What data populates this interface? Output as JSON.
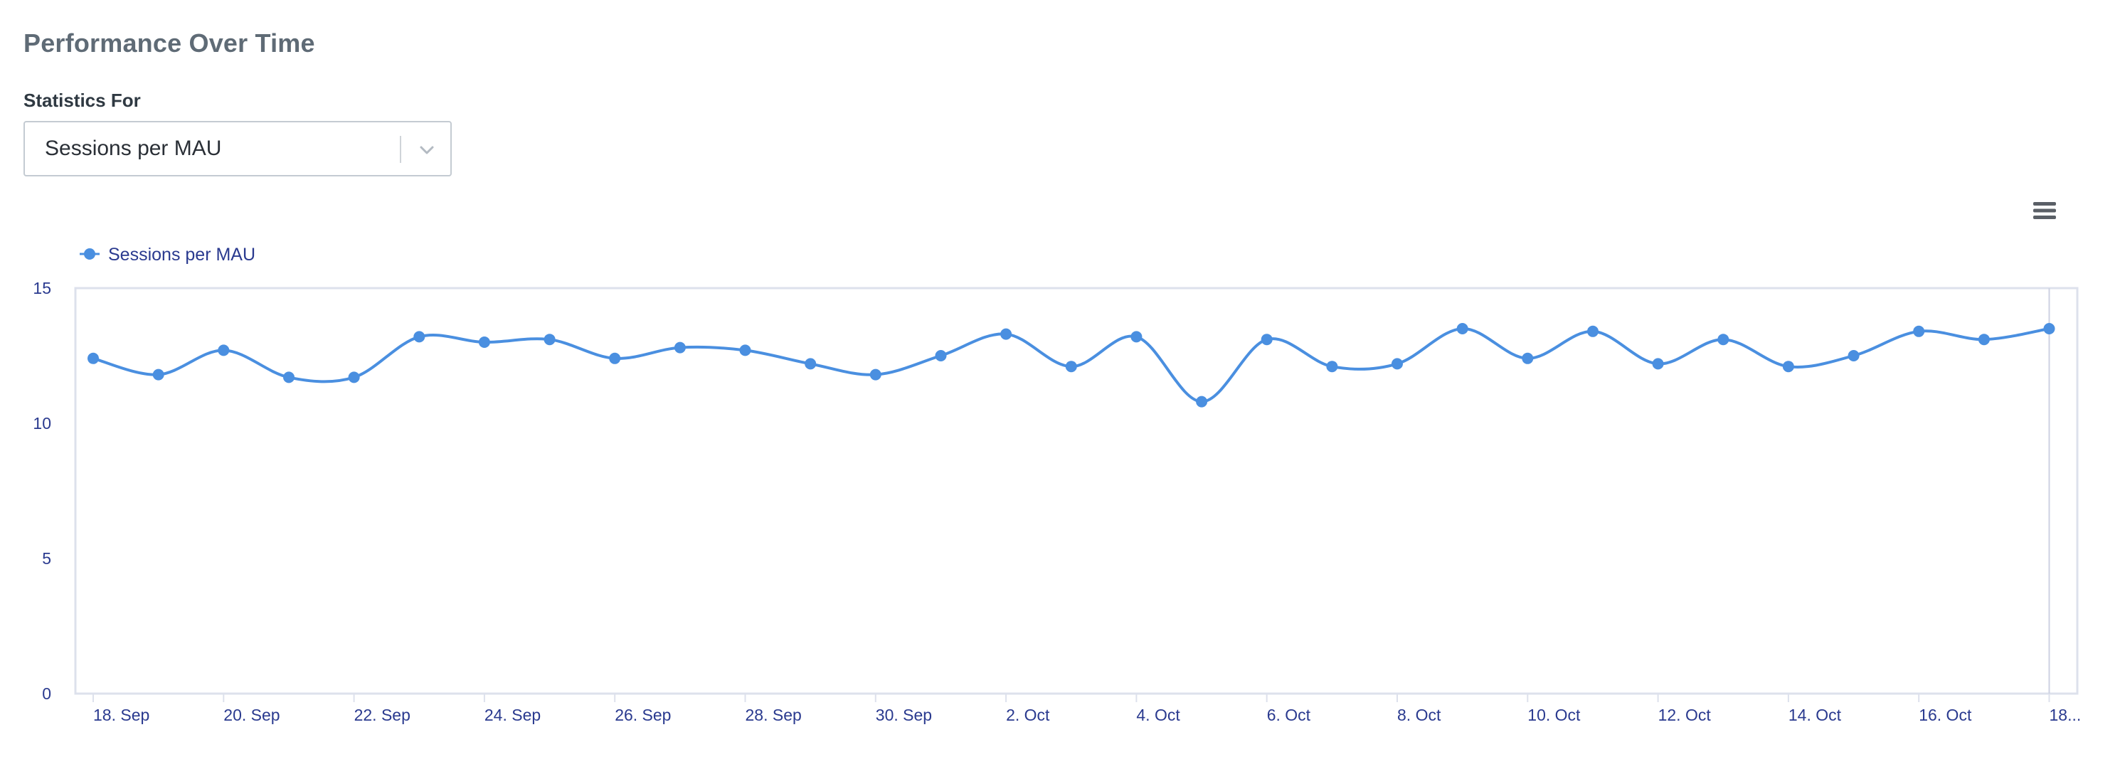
{
  "header": {
    "title": "Performance Over Time"
  },
  "filter": {
    "label": "Statistics For",
    "selected": "Sessions per MAU"
  },
  "menu": {
    "icon": "hamburger-icon"
  },
  "colors": {
    "series": "#4a8fe0",
    "axis_text": "#2a3a8f",
    "grid": "#dde1ec"
  },
  "chart_data": {
    "type": "line",
    "title": "",
    "xlabel": "",
    "ylabel": "",
    "ylim": [
      0,
      15
    ],
    "yticks": [
      0,
      5,
      10,
      15
    ],
    "legend_position": "top-left",
    "x_tick_labels": [
      "18. Sep",
      "20. Sep",
      "22. Sep",
      "24. Sep",
      "26. Sep",
      "28. Sep",
      "30. Sep",
      "2. Oct",
      "4. Oct",
      "6. Oct",
      "8. Oct",
      "10. Oct",
      "12. Oct",
      "14. Oct",
      "16. Oct",
      "18..."
    ],
    "x": [
      "2023-09-18",
      "2023-09-19",
      "2023-09-20",
      "2023-09-21",
      "2023-09-22",
      "2023-09-23",
      "2023-09-24",
      "2023-09-25",
      "2023-09-26",
      "2023-09-27",
      "2023-09-28",
      "2023-09-29",
      "2023-09-30",
      "2023-10-01",
      "2023-10-02",
      "2023-10-03",
      "2023-10-04",
      "2023-10-05",
      "2023-10-06",
      "2023-10-07",
      "2023-10-08",
      "2023-10-09",
      "2023-10-10",
      "2023-10-11",
      "2023-10-12",
      "2023-10-13",
      "2023-10-14",
      "2023-10-15",
      "2023-10-16",
      "2023-10-17",
      "2023-10-18"
    ],
    "series": [
      {
        "name": "Sessions per MAU",
        "values": [
          12.4,
          11.8,
          12.7,
          11.7,
          11.7,
          13.2,
          13.0,
          13.1,
          12.4,
          12.8,
          12.7,
          12.2,
          11.8,
          12.5,
          13.3,
          12.1,
          13.2,
          10.8,
          13.1,
          12.1,
          12.2,
          13.5,
          12.4,
          13.4,
          12.2,
          13.1,
          12.1,
          12.5,
          13.4,
          13.1,
          13.5
        ]
      }
    ]
  }
}
